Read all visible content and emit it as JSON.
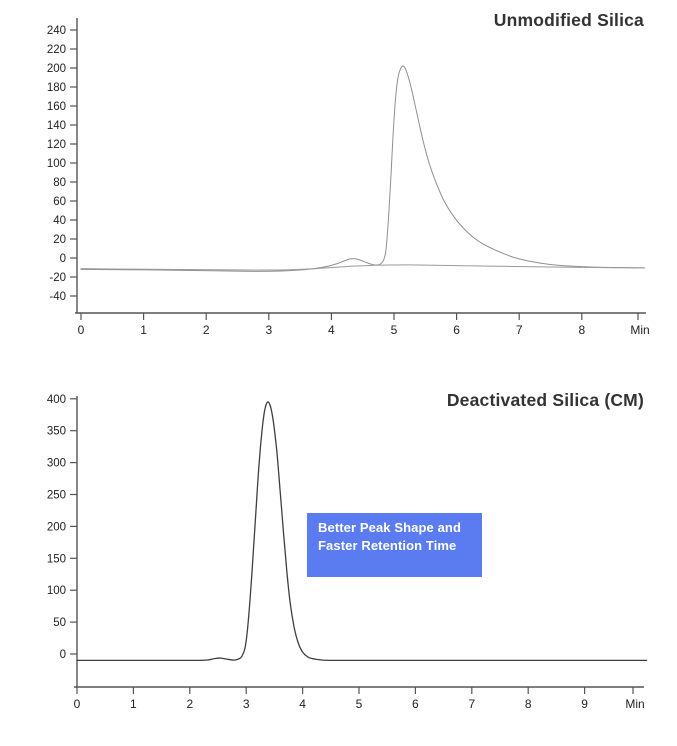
{
  "page": {
    "background_color": "#ffffff",
    "title_color": "#333333",
    "axis_color": "#555555",
    "tick_label_color": "#222222",
    "accent_blue": "#5b7bf0"
  },
  "chart_data": [
    {
      "type": "line",
      "title": "Unmodified Silica",
      "xlabel": "Min",
      "ylabel": "",
      "xlim": [
        0,
        9
      ],
      "ylim": [
        -40,
        240
      ],
      "grid": false,
      "legend": "none",
      "x_ticks": [
        0,
        1,
        2,
        3,
        4,
        5,
        6,
        7,
        8
      ],
      "y_ticks": [
        240,
        220,
        200,
        180,
        160,
        140,
        120,
        100,
        80,
        60,
        40,
        20,
        0,
        -20,
        -40
      ],
      "series": [
        {
          "name": "main-peak-trace",
          "color": "#8f8f8f",
          "width": 1,
          "peak_retention_min": 5.15,
          "peak_height": 202,
          "points": [
            [
              0,
              -12
            ],
            [
              0.7,
              -12.3
            ],
            [
              1.5,
              -12.8
            ],
            [
              2.1,
              -13.4
            ],
            [
              2.6,
              -14
            ],
            [
              3.0,
              -14
            ],
            [
              3.3,
              -13.4
            ],
            [
              3.55,
              -12.4
            ],
            [
              3.75,
              -11
            ],
            [
              3.95,
              -8.5
            ],
            [
              4.1,
              -5.8
            ],
            [
              4.2,
              -3.2
            ],
            [
              4.3,
              -1
            ],
            [
              4.38,
              -0.7
            ],
            [
              4.45,
              -2
            ],
            [
              4.55,
              -4.5
            ],
            [
              4.65,
              -6.8
            ],
            [
              4.72,
              -7.4
            ],
            [
              4.78,
              -6.4
            ],
            [
              4.83,
              -2.5
            ],
            [
              4.87,
              8
            ],
            [
              4.91,
              40
            ],
            [
              4.95,
              85
            ],
            [
              4.99,
              135
            ],
            [
              5.03,
              172
            ],
            [
              5.07,
              192
            ],
            [
              5.11,
              200
            ],
            [
              5.15,
              202
            ],
            [
              5.19,
              198
            ],
            [
              5.24,
              188
            ],
            [
              5.3,
              172
            ],
            [
              5.38,
              148
            ],
            [
              5.47,
              122
            ],
            [
              5.57,
              98
            ],
            [
              5.68,
              78
            ],
            [
              5.8,
              60
            ],
            [
              5.95,
              44
            ],
            [
              6.1,
              32
            ],
            [
              6.3,
              20
            ],
            [
              6.5,
              12
            ],
            [
              6.7,
              6
            ],
            [
              6.9,
              1
            ],
            [
              7.1,
              -2.5
            ],
            [
              7.35,
              -5.5
            ],
            [
              7.6,
              -7.5
            ],
            [
              7.9,
              -8.8
            ],
            [
              8.2,
              -9.6
            ],
            [
              8.5,
              -10
            ],
            [
              9.0,
              -10.4
            ]
          ]
        },
        {
          "name": "reference-baseline-trace",
          "color": "#9a9a9a",
          "width": 1,
          "points": [
            [
              0,
              -11.2
            ],
            [
              0.8,
              -11.7
            ],
            [
              1.6,
              -12.1
            ],
            [
              2.2,
              -12.4
            ],
            [
              2.7,
              -12.6
            ],
            [
              3.1,
              -12.6
            ],
            [
              3.4,
              -12.2
            ],
            [
              3.7,
              -11.4
            ],
            [
              3.95,
              -10.3
            ],
            [
              4.2,
              -9.2
            ],
            [
              4.45,
              -8.3
            ],
            [
              4.7,
              -7.7
            ],
            [
              4.95,
              -7.4
            ],
            [
              5.2,
              -7.3
            ],
            [
              5.5,
              -7.5
            ],
            [
              5.9,
              -7.9
            ],
            [
              6.3,
              -8.3
            ],
            [
              6.7,
              -8.7
            ],
            [
              7.1,
              -9.1
            ],
            [
              7.5,
              -9.5
            ],
            [
              8.0,
              -9.9
            ],
            [
              8.5,
              -10.2
            ],
            [
              9.0,
              -10.4
            ]
          ]
        }
      ]
    },
    {
      "type": "line",
      "title": "Deactivated Silica (CM)",
      "xlabel": "Min",
      "ylabel": "",
      "xlim": [
        0,
        10.1
      ],
      "ylim": [
        -50,
        400
      ],
      "grid": false,
      "legend": "none",
      "x_ticks": [
        0,
        1,
        2,
        3,
        4,
        5,
        6,
        7,
        8,
        9
      ],
      "y_ticks": [
        400,
        350,
        300,
        250,
        200,
        150,
        100,
        50,
        0
      ],
      "series": [
        {
          "name": "main-peak-trace",
          "color": "#3f3f3f",
          "width": 1.3,
          "peak_retention_min": 3.38,
          "peak_height": 395,
          "points": [
            [
              0,
              -10
            ],
            [
              0.8,
              -10
            ],
            [
              1.6,
              -10
            ],
            [
              2.2,
              -9.8
            ],
            [
              2.35,
              -9
            ],
            [
              2.45,
              -7
            ],
            [
              2.55,
              -6.5
            ],
            [
              2.65,
              -8
            ],
            [
              2.78,
              -9.5
            ],
            [
              2.86,
              -8
            ],
            [
              2.92,
              -4
            ],
            [
              2.98,
              10
            ],
            [
              3.03,
              45
            ],
            [
              3.08,
              100
            ],
            [
              3.13,
              165
            ],
            [
              3.18,
              235
            ],
            [
              3.23,
              300
            ],
            [
              3.28,
              350
            ],
            [
              3.33,
              383
            ],
            [
              3.38,
              395
            ],
            [
              3.43,
              388
            ],
            [
              3.48,
              365
            ],
            [
              3.54,
              320
            ],
            [
              3.6,
              258
            ],
            [
              3.66,
              192
            ],
            [
              3.72,
              130
            ],
            [
              3.78,
              80
            ],
            [
              3.85,
              42
            ],
            [
              3.92,
              18
            ],
            [
              4.0,
              3
            ],
            [
              4.1,
              -5
            ],
            [
              4.22,
              -8
            ],
            [
              4.36,
              -9.5
            ],
            [
              4.6,
              -10
            ],
            [
              5.2,
              -10
            ],
            [
              6,
              -10
            ],
            [
              7,
              -10
            ],
            [
              8,
              -10
            ],
            [
              9,
              -10
            ],
            [
              10.1,
              -10
            ]
          ]
        }
      ],
      "annotation": {
        "text": "Better Peak Shape and Faster Retention Time",
        "bg_color": "#5b7bf0",
        "text_color": "#ffffff"
      }
    }
  ]
}
